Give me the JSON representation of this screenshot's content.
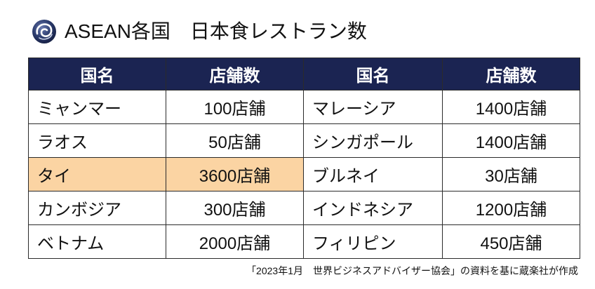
{
  "title": "ASEAN各国　日本食レストラン数",
  "logo_icon": "swirl-logo-icon",
  "colors": {
    "header_bg": "#1b2452",
    "highlight_bg": "#fbd4a3",
    "border": "#2b2b2b"
  },
  "table": {
    "headers": [
      "国名",
      "店舗数",
      "国名",
      "店舗数"
    ],
    "rows": [
      {
        "left_country": "ミャンマー",
        "left_count": "100店舗",
        "right_country": "マレーシア",
        "right_count": "1400店舗",
        "highlight_left": false
      },
      {
        "left_country": "ラオス",
        "left_count": "50店舗",
        "right_country": "シンガポール",
        "right_count": "1400店舗",
        "highlight_left": false
      },
      {
        "left_country": "タイ",
        "left_count": "3600店舗",
        "right_country": "ブルネイ",
        "right_count": "30店舗",
        "highlight_left": true
      },
      {
        "left_country": "カンボジア",
        "left_count": "300店舗",
        "right_country": "インドネシア",
        "right_count": "1200店舗",
        "highlight_left": false
      },
      {
        "left_country": "ベトナム",
        "left_count": "2000店舗",
        "right_country": "フィリピン",
        "right_count": "450店舗",
        "highlight_left": false
      }
    ]
  },
  "footnote": "「2023年1月　世界ビジネスアドバイザー協会」の資料を基に蔵楽社が作成"
}
